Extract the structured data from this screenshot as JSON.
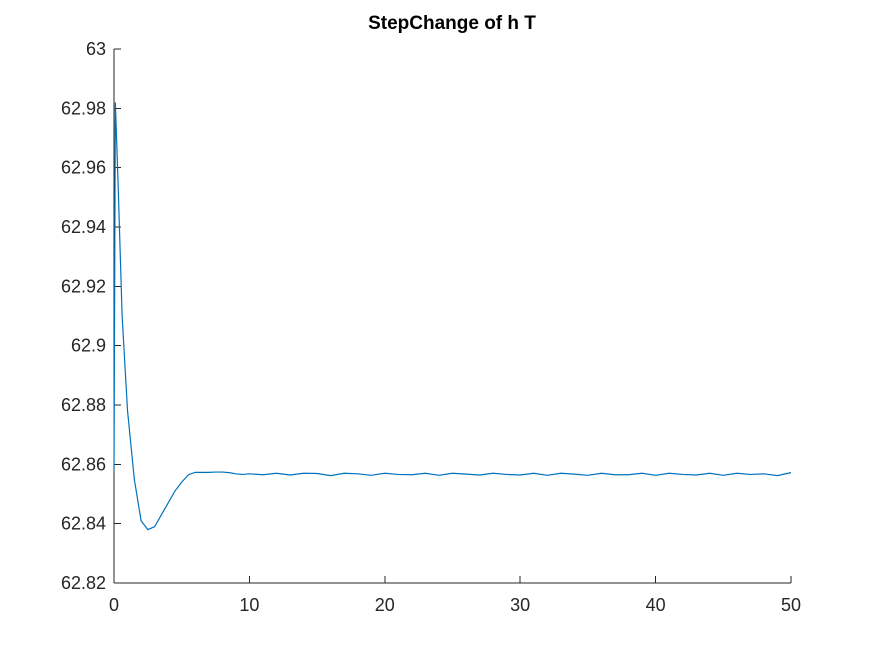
{
  "chart_data": {
    "type": "line",
    "title": "StepChange of h T",
    "xlabel": "",
    "ylabel": "",
    "xlim": [
      0,
      50
    ],
    "ylim": [
      62.82,
      63
    ],
    "xticks": [
      0,
      10,
      20,
      30,
      40,
      50
    ],
    "xtick_labels": [
      "0",
      "10",
      "20",
      "30",
      "40",
      "50"
    ],
    "yticks": [
      62.82,
      62.84,
      62.86,
      62.88,
      62.9,
      62.92,
      62.94,
      62.96,
      62.98,
      63
    ],
    "ytick_labels": [
      "62.82",
      "62.84",
      "62.86",
      "62.88",
      "62.9",
      "62.92",
      "62.94",
      "62.96",
      "62.98",
      "63"
    ],
    "grid": false,
    "colors": {
      "series": "#0072BD",
      "axis": "#262626",
      "background": "#ffffff"
    },
    "series": [
      {
        "x": [
          0,
          0.1,
          0.3,
          0.6,
          1.0,
          1.5,
          2.0,
          2.5,
          3.0,
          3.5,
          4.0,
          4.5,
          5.0,
          5.5,
          6.0,
          6.5,
          7.0,
          7.5,
          8.0,
          8.5,
          9.0,
          9.5,
          10,
          11,
          12,
          13,
          14,
          15,
          16,
          17,
          18,
          19,
          20,
          21,
          22,
          23,
          24,
          25,
          26,
          27,
          28,
          29,
          30,
          31,
          32,
          33,
          34,
          35,
          36,
          37,
          38,
          39,
          40,
          41,
          42,
          43,
          44,
          45,
          46,
          47,
          48,
          49,
          50
        ],
        "y": [
          62.858,
          62.982,
          62.955,
          62.91,
          62.878,
          62.855,
          62.841,
          62.838,
          62.839,
          62.843,
          62.847,
          62.851,
          62.854,
          62.8565,
          62.8573,
          62.8573,
          62.8573,
          62.8574,
          62.8574,
          62.8572,
          62.8568,
          62.8566,
          62.8568,
          62.8565,
          62.857,
          62.8564,
          62.857,
          62.8569,
          62.8562,
          62.857,
          62.8568,
          62.8563,
          62.857,
          62.8566,
          62.8565,
          62.857,
          62.8563,
          62.857,
          62.8567,
          62.8564,
          62.857,
          62.8566,
          62.8564,
          62.857,
          62.8563,
          62.857,
          62.8567,
          62.8563,
          62.857,
          62.8565,
          62.8565,
          62.857,
          62.8563,
          62.857,
          62.8566,
          62.8564,
          62.857,
          62.8563,
          62.857,
          62.8566,
          62.8568,
          62.8562,
          62.8572
        ]
      }
    ]
  }
}
